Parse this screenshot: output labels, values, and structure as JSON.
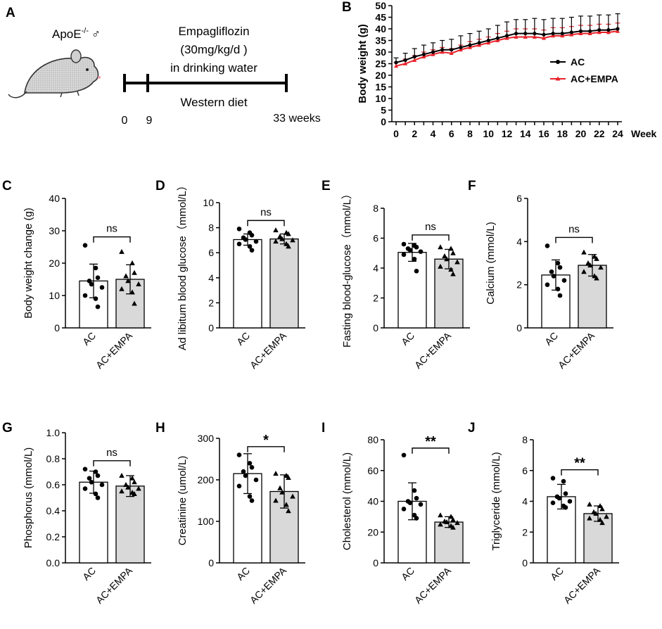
{
  "panel_a": {
    "letter": "A",
    "mouse_label": "ApoE",
    "mouse_label_sup": "-/-",
    "mouse_sex_symbol": "♂",
    "drug_line1": "Empagliflozin",
    "drug_line2": "(30mg/kg/d )",
    "drug_line3": "in drinking water",
    "diet_label": "Western diet",
    "tick_start": "0",
    "tick_mid": "9",
    "tick_end": "33 weeks"
  },
  "chart_data": [
    {
      "id": "B",
      "letter": "B",
      "type": "line",
      "ylabel": "Body weight (g)",
      "xlabel": "Week",
      "x": [
        0,
        1,
        2,
        3,
        4,
        5,
        6,
        7,
        8,
        9,
        10,
        11,
        12,
        13,
        14,
        15,
        16,
        17,
        18,
        19,
        20,
        21,
        22,
        23,
        24
      ],
      "xticks": [
        0,
        2,
        4,
        6,
        8,
        10,
        12,
        14,
        16,
        18,
        20,
        22,
        24
      ],
      "ylim": [
        0,
        50
      ],
      "yticks": [
        0,
        5,
        10,
        15,
        20,
        25,
        30,
        35,
        40,
        45,
        50
      ],
      "series": [
        {
          "name": "AC",
          "color": "#000000",
          "values": [
            25.5,
            26.5,
            28,
            29,
            30,
            31,
            31,
            32,
            33,
            34,
            35,
            36,
            37,
            38,
            38,
            38,
            37.5,
            38,
            38,
            38.5,
            39,
            39,
            39.5,
            39.5,
            40
          ],
          "errors": [
            2,
            3,
            3.5,
            4,
            4,
            4,
            4.5,
            5,
            5,
            5,
            5,
            5.5,
            6,
            6,
            6,
            6.5,
            6.5,
            6.5,
            6.5,
            6.5,
            6.5,
            6.5,
            6.5,
            6.5,
            6.5
          ]
        },
        {
          "name": "AC+EMPA",
          "color": "#e8232a",
          "values": [
            24,
            25,
            26.5,
            28,
            29,
            30,
            29.5,
            31,
            32,
            33,
            34,
            35,
            36,
            36.5,
            36.5,
            36.5,
            36,
            37,
            37,
            37.5,
            38,
            38,
            38.5,
            38.5,
            39
          ],
          "errors": [
            1.5,
            2,
            2,
            2,
            2,
            2,
            2,
            2,
            2.5,
            2.5,
            2.5,
            3,
            3,
            3.5,
            3.5,
            3.5,
            3.5,
            3.5,
            3.5,
            3.5,
            3.5,
            3.5,
            3.5,
            3.5,
            3.5
          ]
        }
      ]
    },
    {
      "id": "C",
      "letter": "C",
      "type": "bar",
      "ylabel": "Body weight change (g)",
      "categories": [
        "AC",
        "AC+EMPA"
      ],
      "ylim": [
        0,
        40
      ],
      "yticks": [
        0,
        10,
        20,
        30,
        40
      ],
      "values": [
        14.5,
        15
      ],
      "errors": [
        5.2,
        4.5
      ],
      "significance": "ns",
      "points": [
        [
          25.5,
          18.5,
          15.5,
          14.5,
          13.5,
          12.5,
          10,
          9,
          6.5
        ],
        [
          23.5,
          20,
          17,
          16,
          14.5,
          13.5,
          12,
          11,
          7.5
        ]
      ]
    },
    {
      "id": "D",
      "letter": "D",
      "type": "bar",
      "ylabel": "Ad libitum  blood glucose（mmol/L）",
      "categories": [
        "AC",
        "AC+EMPA"
      ],
      "ylim": [
        0,
        10
      ],
      "yticks": [
        0,
        2,
        4,
        6,
        8,
        10
      ],
      "values": [
        7.05,
        7.1
      ],
      "errors": [
        0.45,
        0.4
      ],
      "significance": "ns",
      "points": [
        [
          7.9,
          7.6,
          7.4,
          7.2,
          7.05,
          6.9,
          6.7,
          6.5,
          6.2
        ],
        [
          7.8,
          7.6,
          7.5,
          7.3,
          7.1,
          7.0,
          6.9,
          6.7,
          6.5
        ]
      ]
    },
    {
      "id": "E",
      "letter": "E",
      "type": "bar",
      "ylabel": "Fasting blood-glucose（mmol/L）",
      "categories": [
        "AC",
        "AC+EMPA"
      ],
      "ylim": [
        0,
        8
      ],
      "yticks": [
        0,
        2,
        4,
        6,
        8
      ],
      "values": [
        5.05,
        4.6
      ],
      "errors": [
        0.6,
        0.65
      ],
      "significance": "ns",
      "points": [
        [
          5.6,
          5.5,
          5.4,
          5.3,
          5.2,
          5.1,
          4.9,
          4.6,
          3.8
        ],
        [
          5.4,
          5.3,
          5.0,
          4.8,
          4.6,
          4.4,
          4.1,
          3.9,
          3.6
        ]
      ]
    },
    {
      "id": "F",
      "letter": "F",
      "type": "bar",
      "ylabel": "Calcium (mmol/L)",
      "categories": [
        "AC",
        "AC+EMPA"
      ],
      "ylim": [
        0,
        6
      ],
      "yticks": [
        0,
        2,
        4,
        6
      ],
      "values": [
        2.45,
        2.9
      ],
      "errors": [
        0.7,
        0.5
      ],
      "significance": "ns",
      "points": [
        [
          3.8,
          3.0,
          2.8,
          2.6,
          2.4,
          2.2,
          2.0,
          1.8,
          1.5
        ],
        [
          3.5,
          3.3,
          3.2,
          3.0,
          2.9,
          2.8,
          2.6,
          2.4,
          2.3
        ]
      ]
    },
    {
      "id": "G",
      "letter": "G",
      "type": "bar",
      "ylabel": "Phosphorus (mmol/L)",
      "categories": [
        "AC",
        "AC+EMPA"
      ],
      "ylim": [
        0,
        1.0
      ],
      "yticks": [
        0.0,
        0.2,
        0.4,
        0.6,
        0.8,
        1.0
      ],
      "values": [
        0.62,
        0.59
      ],
      "errors": [
        0.085,
        0.08
      ],
      "significance": "ns",
      "points": [
        [
          0.72,
          0.7,
          0.67,
          0.65,
          0.62,
          0.6,
          0.57,
          0.53,
          0.5
        ],
        [
          0.67,
          0.65,
          0.62,
          0.6,
          0.58,
          0.57,
          0.55,
          0.54,
          0.53
        ]
      ]
    },
    {
      "id": "H",
      "letter": "H",
      "type": "bar",
      "ylabel": "Creatinine (umol/L)",
      "categories": [
        "AC",
        "AC+EMPA"
      ],
      "ylim": [
        0,
        300
      ],
      "yticks": [
        0,
        100,
        200,
        300
      ],
      "values": [
        215,
        172
      ],
      "errors": [
        48,
        40
      ],
      "significance": "*",
      "points": [
        [
          260,
          240,
          230,
          220,
          210,
          200,
          185,
          160,
          150
        ],
        [
          215,
          210,
          205,
          180,
          170,
          160,
          150,
          140,
          125
        ]
      ]
    },
    {
      "id": "I",
      "letter": "I",
      "type": "bar",
      "ylabel": "Cholesterol (mmol/L)",
      "categories": [
        "AC",
        "AC+EMPA"
      ],
      "ylim": [
        0,
        80
      ],
      "yticks": [
        0,
        20,
        40,
        60,
        80
      ],
      "values": [
        40,
        26.5
      ],
      "errors": [
        12,
        3.5
      ],
      "significance": "**",
      "points": [
        [
          70,
          47,
          42,
          40,
          39,
          38,
          35,
          31,
          29
        ],
        [
          31,
          30,
          28,
          27,
          26.5,
          26,
          25,
          24,
          23
        ]
      ]
    },
    {
      "id": "J",
      "letter": "J",
      "type": "bar",
      "ylabel": "Triglyceride (mmol/L)",
      "categories": [
        "AC",
        "AC+EMPA"
      ],
      "ylim": [
        0,
        8
      ],
      "yticks": [
        0,
        2,
        4,
        6,
        8
      ],
      "values": [
        4.3,
        3.2
      ],
      "errors": [
        0.8,
        0.5
      ],
      "significance": "**",
      "points": [
        [
          5.5,
          5.3,
          4.5,
          4.3,
          4.2,
          4.0,
          3.9,
          3.7,
          3.6
        ],
        [
          3.8,
          3.7,
          3.5,
          3.3,
          3.2,
          3.0,
          2.9,
          2.8,
          2.6
        ]
      ]
    }
  ]
}
